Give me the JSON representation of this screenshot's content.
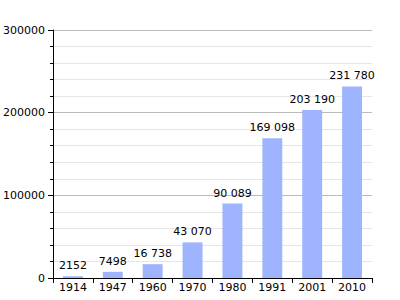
{
  "chart_data": {
    "type": "bar",
    "categories": [
      "1914",
      "1947",
      "1960",
      "1970",
      "1980",
      "1991",
      "2001",
      "2010"
    ],
    "values": [
      2152,
      7498,
      16738,
      43070,
      90089,
      169098,
      203190,
      231780
    ],
    "value_labels": [
      "2152",
      "7498",
      "16 738",
      "43 070",
      "90 089",
      "169 098",
      "203 190",
      "231 780"
    ],
    "color": "#9fb4ff",
    "ylim": [
      0,
      300000
    ],
    "yticks": [
      0,
      100000,
      200000,
      300000
    ],
    "grid": true,
    "data_labels": true
  }
}
